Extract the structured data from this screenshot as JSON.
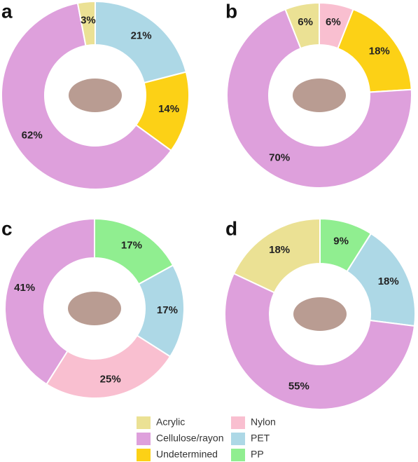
{
  "chart_data": [
    {
      "type": "donut",
      "label": "a",
      "categories": [
        "PET",
        "Undetermined",
        "Cellulose/rayon",
        "Acrylic"
      ],
      "values": [
        21,
        14,
        62,
        3
      ],
      "value_labels": [
        "21%",
        "14%",
        "62%",
        "3%"
      ],
      "colors": [
        "#add8e6",
        "#fcd116",
        "#dea0dc",
        "#ebe194"
      ]
    },
    {
      "type": "donut",
      "label": "b",
      "categories": [
        "Nylon",
        "Undetermined",
        "Cellulose/rayon",
        "Acrylic"
      ],
      "values": [
        6,
        18,
        70,
        6
      ],
      "value_labels": [
        "6%",
        "18%",
        "70%",
        "6%"
      ],
      "colors": [
        "#f9bfd0",
        "#fcd116",
        "#dea0dc",
        "#ebe194"
      ]
    },
    {
      "type": "donut",
      "label": "c",
      "categories": [
        "PP",
        "PET",
        "Nylon",
        "Cellulose/rayon"
      ],
      "values": [
        17,
        17,
        25,
        41
      ],
      "value_labels": [
        "17%",
        "17%",
        "25%",
        "41%"
      ],
      "colors": [
        "#90ee90",
        "#add8e6",
        "#f9bfd0",
        "#dea0dc"
      ]
    },
    {
      "type": "donut",
      "label": "d",
      "categories": [
        "PP",
        "PET",
        "Cellulose/rayon",
        "Acrylic"
      ],
      "values": [
        9,
        18,
        55,
        18
      ],
      "value_labels": [
        "9%",
        "18%",
        "55%",
        "18%"
      ],
      "colors": [
        "#90ee90",
        "#add8e6",
        "#dea0dc",
        "#ebe194"
      ]
    }
  ],
  "legend": [
    {
      "name": "Acrylic",
      "color": "#ebe194"
    },
    {
      "name": "Cellulose/rayon",
      "color": "#dea0dc"
    },
    {
      "name": "Undetermined",
      "color": "#fcd116"
    },
    {
      "name": "Nylon",
      "color": "#f9bfd0"
    },
    {
      "name": "PET",
      "color": "#add8e6"
    },
    {
      "name": "PP",
      "color": "#90ee90"
    }
  ]
}
